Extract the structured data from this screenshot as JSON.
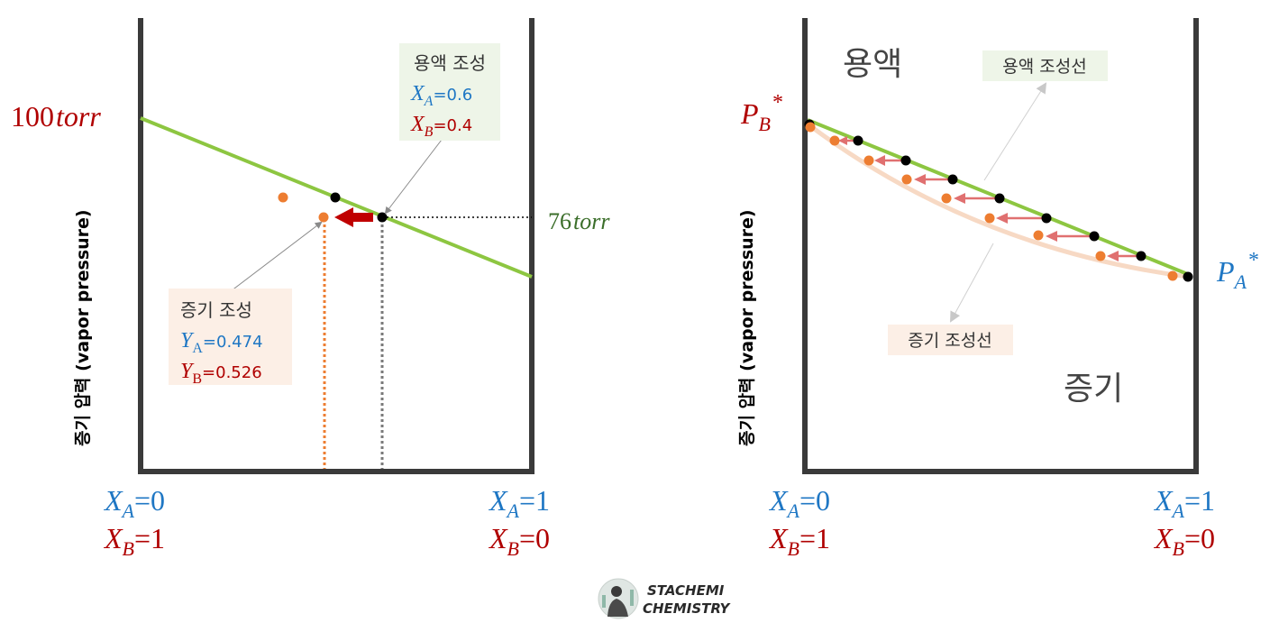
{
  "left": {
    "y_axis_label": "증기 압력 (vapor pressure)",
    "p100": {
      "num": "100",
      "unit": "torr"
    },
    "p76": {
      "num": "76",
      "unit": "torr"
    },
    "solution_box": {
      "title": "용액 조성",
      "xa_sym": "X",
      "xa_sub": "A",
      "xa_val": "=0.6",
      "xb_sym": "X",
      "xb_sub": "B",
      "xb_val": "=0.4"
    },
    "vapor_box": {
      "title": "증기 조성",
      "ya_sym": "Y",
      "ya_sub": "A",
      "ya_val": "=0.474",
      "yb_sym": "Y",
      "yb_sub": "B",
      "yb_val": "=0.526"
    },
    "x_left": {
      "a_sym": "X",
      "a_sub": "A",
      "a_val": "=0",
      "b_sym": "X",
      "b_sub": "B",
      "b_val": "=1"
    },
    "x_right": {
      "a_sym": "X",
      "a_sub": "A",
      "a_val": "=1",
      "b_sym": "X",
      "b_sub": "B",
      "b_val": "=0"
    }
  },
  "right": {
    "y_axis_label": "증기 압력 (vapor pressure)",
    "region_liquid": "용액",
    "region_vapor": "증기",
    "liquid_line_label": "용액 조성선",
    "vapor_line_label": "증기 조성선",
    "pb": {
      "sym": "P",
      "sub": "B",
      "sup": "*"
    },
    "pa": {
      "sym": "P",
      "sub": "A",
      "sup": "*"
    },
    "x_left": {
      "a_sym": "X",
      "a_sub": "A",
      "a_val": "=0",
      "b_sym": "X",
      "b_sub": "B",
      "b_val": "=1"
    },
    "x_right": {
      "a_sym": "X",
      "a_sub": "A",
      "a_val": "=1",
      "b_sym": "X",
      "b_sub": "B",
      "b_val": "=0"
    }
  },
  "logo": {
    "line1": "STACHEMI",
    "line2": "CHEMISTRY"
  },
  "colors": {
    "liquid_line": "#8dc641",
    "vapor_curve": "#f7d9c4",
    "liquid_point": "#000000",
    "vapor_point": "#ed7d31",
    "arrow_main": "#c00000",
    "arrow_light": "#e07070",
    "blue": "#1f77c4",
    "red": "#b00000",
    "frame": "#3a3a3a"
  }
}
